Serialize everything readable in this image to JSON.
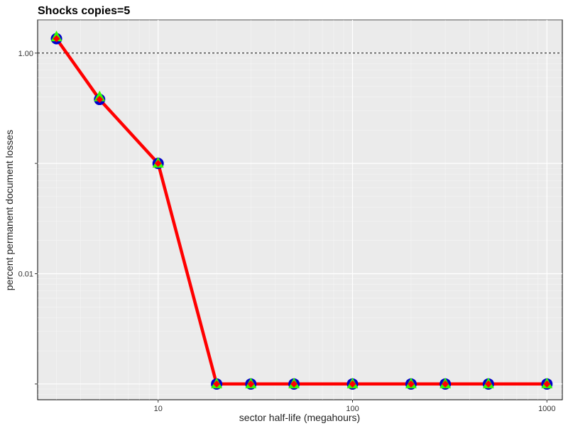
{
  "chart_data": {
    "type": "line",
    "title": "Shocks copies=5",
    "xlabel": "sector half-life (megahours)",
    "ylabel": "percent permanent document losses",
    "x_scale": "log",
    "y_scale": "log",
    "xlim": [
      2.4,
      1200
    ],
    "ylim": [
      0.00072,
      2.0
    ],
    "x_ticks": [
      10,
      100,
      1000
    ],
    "x_tick_labels": [
      "10",
      "100",
      "1000"
    ],
    "y_ticks": [
      1.0,
      0.1,
      0.01,
      0.001
    ],
    "y_tick_labels": [
      "1.00",
      "",
      "0.01",
      ""
    ],
    "reference_line": {
      "y": 1.0,
      "style": "dashed",
      "color": "#000000"
    },
    "grid": true,
    "x": [
      3,
      5,
      10,
      20,
      30,
      50,
      100,
      200,
      300,
      500,
      1000
    ],
    "series": [
      {
        "marker": "circle",
        "color": "#0000cc",
        "line": false,
        "values": [
          1.35,
          0.38,
          0.1,
          0.001,
          0.001,
          0.001,
          0.001,
          0.001,
          0.001,
          0.001,
          0.001
        ]
      },
      {
        "marker": "triangle",
        "color": "#33ff00",
        "line": false,
        "values": [
          1.4,
          0.4,
          0.1,
          0.001,
          0.001,
          0.001,
          0.001,
          0.001,
          0.001,
          0.001,
          0.001
        ]
      },
      {
        "marker": "diamond",
        "color": "#ff0000",
        "line": true,
        "values": [
          1.35,
          0.38,
          0.1,
          0.001,
          0.001,
          0.001,
          0.001,
          0.001,
          0.001,
          0.001,
          0.001
        ]
      }
    ],
    "colors": {
      "panel": "#ebebeb",
      "grid": "#ffffff",
      "line": "#ff0000"
    }
  }
}
